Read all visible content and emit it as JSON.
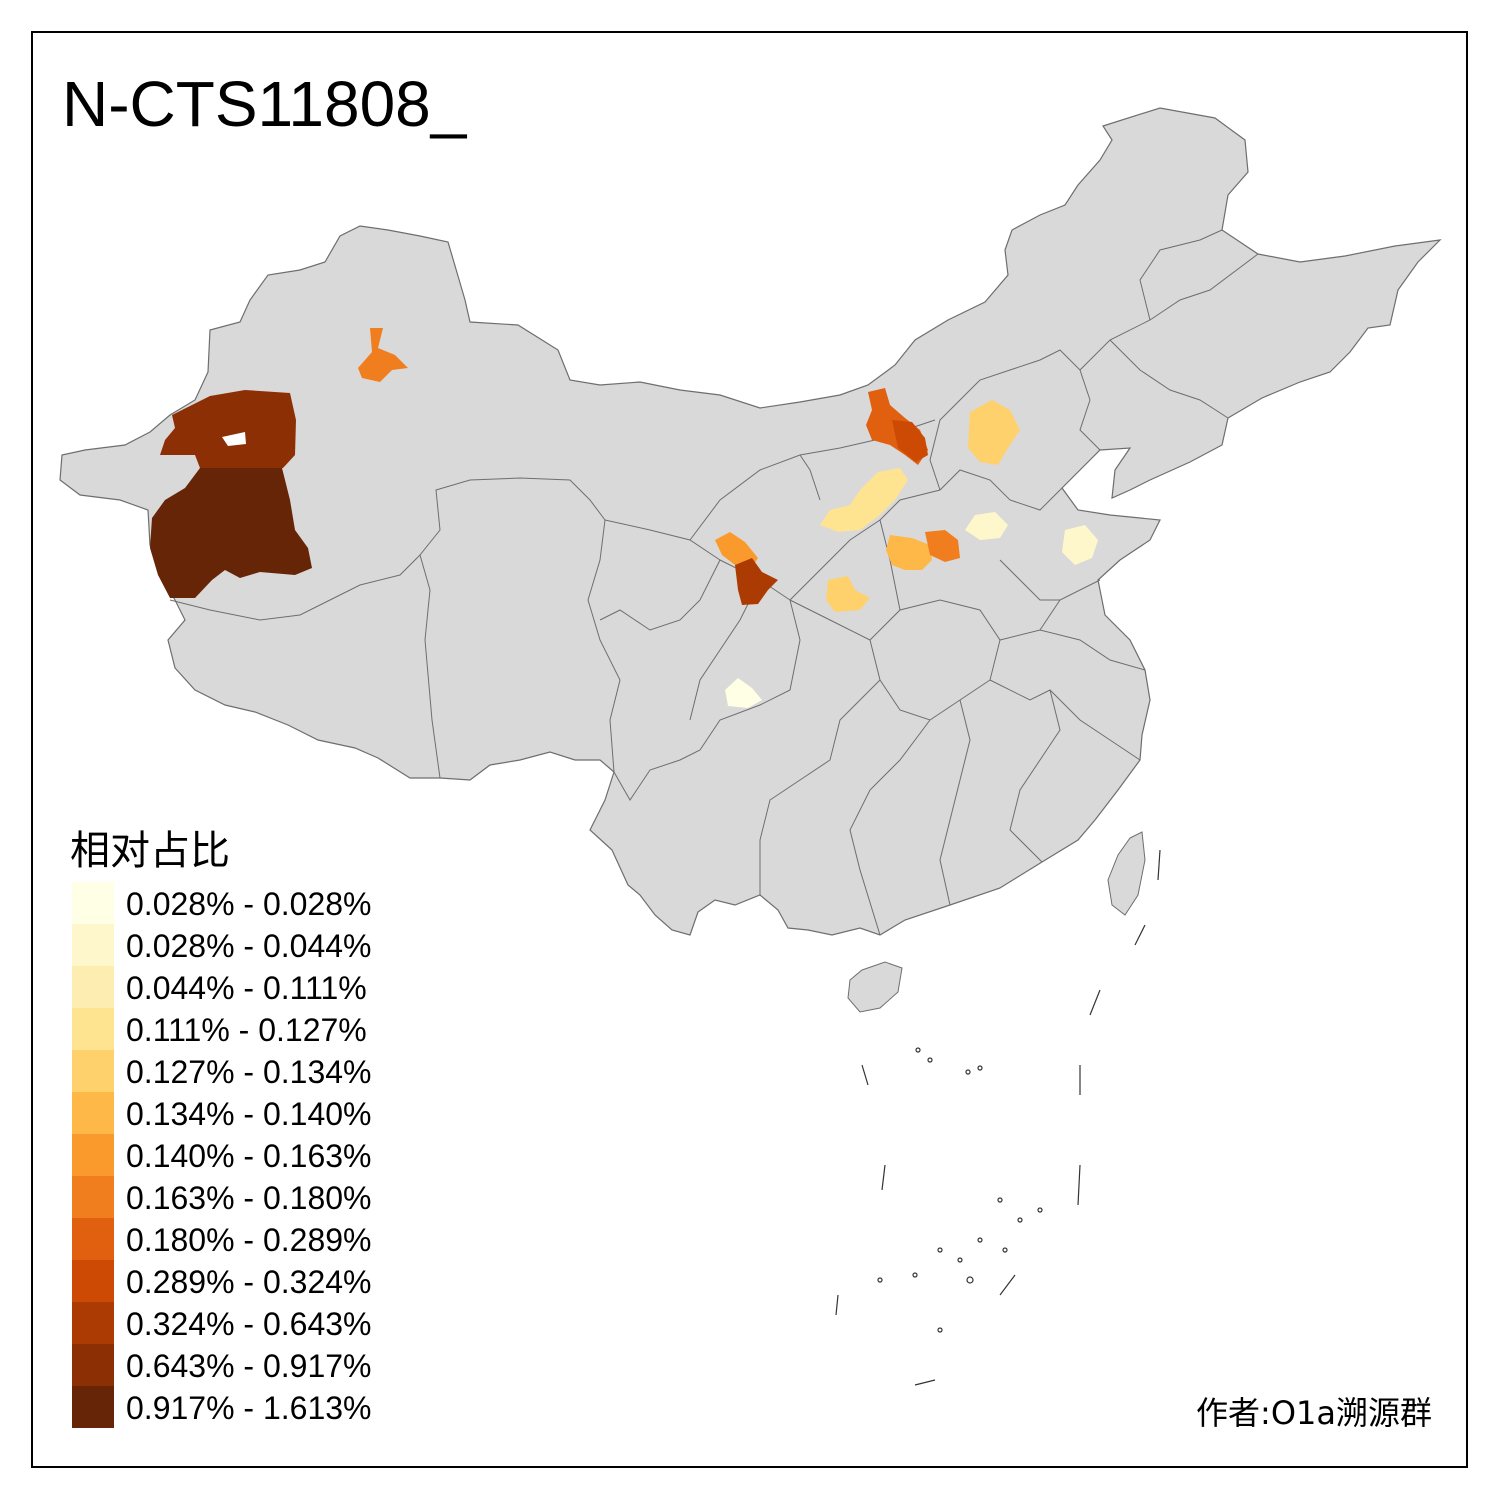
{
  "title": "N-CTS11808_",
  "legend": {
    "title": "相对占比",
    "items": [
      {
        "label": "0.028% - 0.028%",
        "color": "#FFFFE5"
      },
      {
        "label": "0.028% - 0.044%",
        "color": "#FFF7CC"
      },
      {
        "label": "0.044% - 0.111%",
        "color": "#FEEDB0"
      },
      {
        "label": "0.111% - 0.127%",
        "color": "#FEE391"
      },
      {
        "label": "0.127% - 0.134%",
        "color": "#FED16C"
      },
      {
        "label": "0.134% - 0.140%",
        "color": "#FEB848"
      },
      {
        "label": "0.140% - 0.163%",
        "color": "#FB9A2C"
      },
      {
        "label": "0.163% - 0.180%",
        "color": "#F07D1E"
      },
      {
        "label": "0.180% - 0.289%",
        "color": "#E0600F"
      },
      {
        "label": "0.289% - 0.324%",
        "color": "#CC4A04"
      },
      {
        "label": "0.324% - 0.643%",
        "color": "#AC3B03"
      },
      {
        "label": "0.643% - 0.917%",
        "color": "#8C2F04"
      },
      {
        "label": "0.917% - 1.613%",
        "color": "#662506"
      }
    ]
  },
  "author": "作者:O1a溯源群",
  "map": {
    "land_color": "#D9D9D9",
    "border_color": "#6E6E6E"
  }
}
